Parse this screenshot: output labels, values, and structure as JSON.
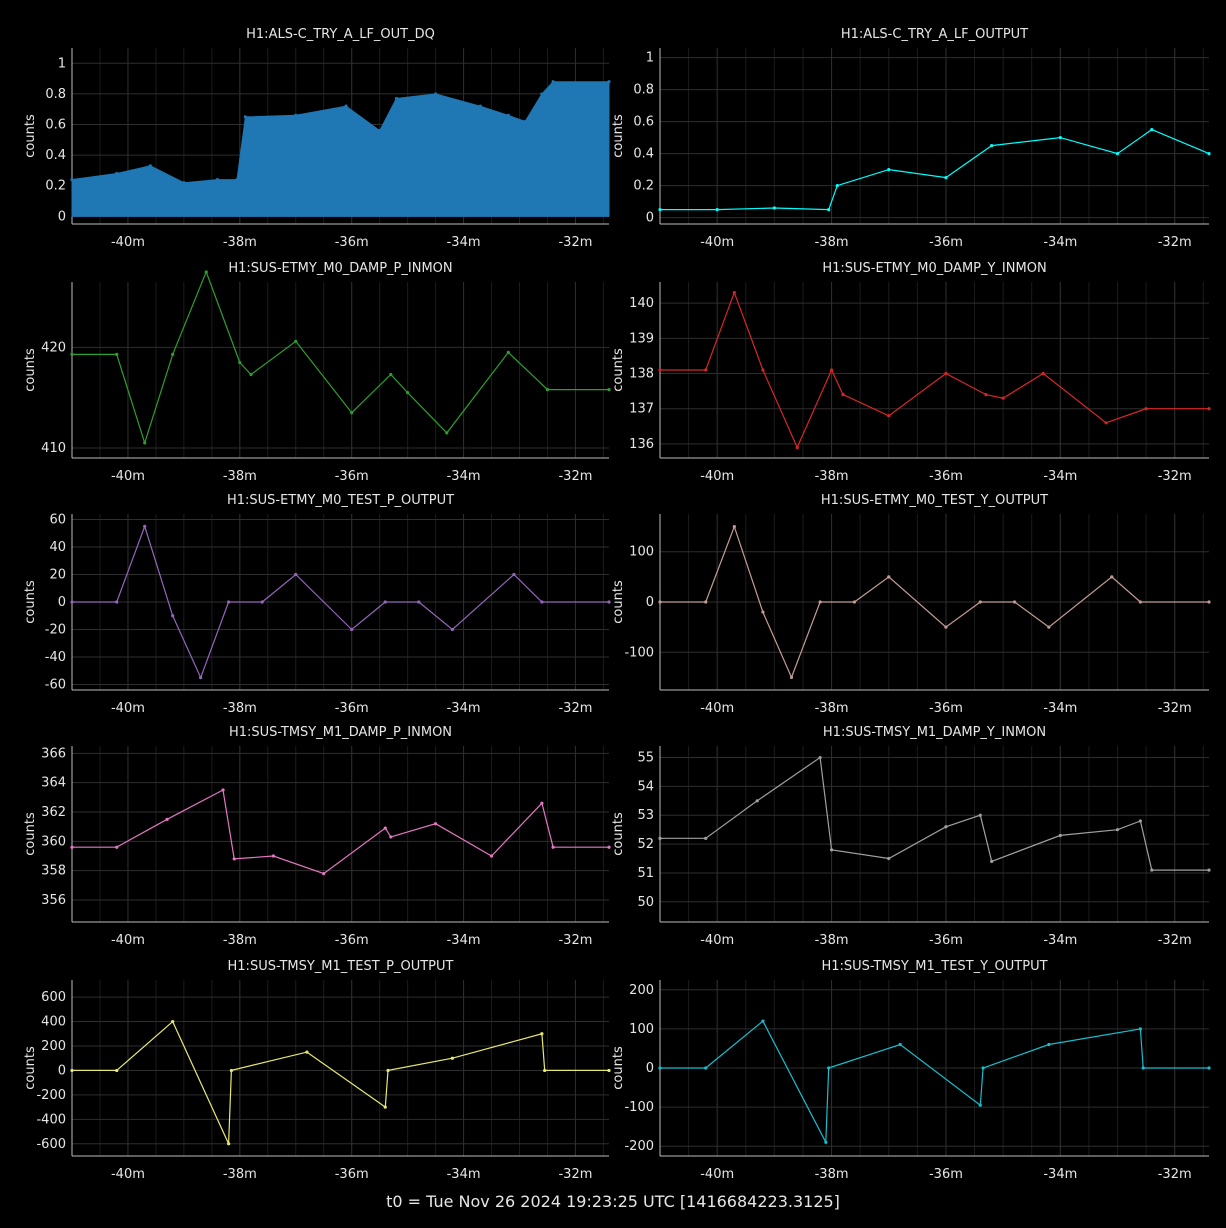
{
  "footer": {
    "t0_label": "t0 = Tue Nov 26 2024 19:23:25 UTC [1416684223.3125]"
  },
  "chart_data": [
    {
      "type": "line",
      "title": "H1:ALS-C_TRY_A_LF_OUT_DQ",
      "ylabel": "counts",
      "color": "#1f77b4",
      "fill": true,
      "xlim": [
        -41,
        -31.4
      ],
      "ylim": [
        -0.05,
        1.1
      ],
      "yticks": [
        0,
        0.2,
        0.4,
        0.6,
        0.8,
        1
      ],
      "ytick_labels": [
        "0",
        "0.2",
        "0.4",
        "0.6",
        "0.8",
        "1"
      ],
      "xticks": [
        -40,
        -38,
        -36,
        -34,
        -32
      ],
      "xtick_labels": [
        "-40m",
        "-38m",
        "-36m",
        "-34m",
        "-32m"
      ],
      "x": [
        -41,
        -40.2,
        -39.6,
        -39.0,
        -38.4,
        -38.05,
        -37.9,
        -37.0,
        -36.1,
        -35.5,
        -35.2,
        -34.5,
        -33.7,
        -33.2,
        -32.9,
        -32.6,
        -32.4,
        -31.4
      ],
      "y": [
        0.24,
        0.28,
        0.33,
        0.22,
        0.24,
        0.24,
        0.65,
        0.66,
        0.72,
        0.56,
        0.77,
        0.8,
        0.72,
        0.66,
        0.62,
        0.8,
        0.88,
        0.88
      ]
    },
    {
      "type": "line",
      "title": "H1:ALS-C_TRY_A_LF_OUTPUT",
      "ylabel": "counts",
      "color": "#00ffff",
      "xlim": [
        -41,
        -31.4
      ],
      "ylim": [
        -0.04,
        1.06
      ],
      "yticks": [
        0,
        0.2,
        0.4,
        0.6,
        0.8,
        1
      ],
      "ytick_labels": [
        "0",
        "0.2",
        "0.4",
        "0.6",
        "0.8",
        "1"
      ],
      "xticks": [
        -40,
        -38,
        -36,
        -34,
        -32
      ],
      "xtick_labels": [
        "-40m",
        "-38m",
        "-36m",
        "-34m",
        "-32m"
      ],
      "x": [
        -41,
        -40,
        -39,
        -38.05,
        -37.9,
        -37,
        -36,
        -35.2,
        -34,
        -33,
        -32.4,
        -31.4
      ],
      "y": [
        0.05,
        0.05,
        0.06,
        0.05,
        0.2,
        0.3,
        0.25,
        0.45,
        0.5,
        0.4,
        0.55,
        0.4
      ]
    },
    {
      "type": "line",
      "title": "H1:SUS-ETMY_M0_DAMP_P_INMON",
      "ylabel": "counts",
      "color": "#2ca02c",
      "xlim": [
        -41,
        -31.4
      ],
      "ylim": [
        409,
        426.5
      ],
      "yticks": [
        410,
        420
      ],
      "ytick_labels": [
        "410",
        "420"
      ],
      "xticks": [
        -40,
        -38,
        -36,
        -34,
        -32
      ],
      "xtick_labels": [
        "-40m",
        "-38m",
        "-36m",
        "-34m",
        "-32m"
      ],
      "x": [
        -41,
        -40.2,
        -39.7,
        -39.2,
        -38.6,
        -38.0,
        -37.8,
        -37.0,
        -36.0,
        -35.3,
        -35.0,
        -34.3,
        -33.2,
        -32.5,
        -31.4
      ],
      "y": [
        419.3,
        419.3,
        410.5,
        419.3,
        427.5,
        418.5,
        417.3,
        420.6,
        413.5,
        417.3,
        415.5,
        411.5,
        419.5,
        415.8,
        415.8
      ]
    },
    {
      "type": "line",
      "title": "H1:SUS-ETMY_M0_DAMP_Y_INMON",
      "ylabel": "counts",
      "color": "#d62728",
      "xlim": [
        -41,
        -31.4
      ],
      "ylim": [
        135.6,
        140.6
      ],
      "yticks": [
        136,
        137,
        138,
        139,
        140
      ],
      "ytick_labels": [
        "136",
        "137",
        "138",
        "139",
        "140"
      ],
      "xticks": [
        -40,
        -38,
        -36,
        -34,
        -32
      ],
      "xtick_labels": [
        "-40m",
        "-38m",
        "-36m",
        "-34m",
        "-32m"
      ],
      "x": [
        -41,
        -40.2,
        -39.7,
        -39.2,
        -38.6,
        -38.0,
        -37.8,
        -37.0,
        -36.0,
        -35.3,
        -35.0,
        -34.3,
        -33.2,
        -32.5,
        -31.4
      ],
      "y": [
        138.1,
        138.1,
        140.3,
        138.1,
        135.9,
        138.1,
        137.4,
        136.8,
        138.0,
        137.4,
        137.3,
        138.0,
        136.6,
        137.0,
        137.0
      ]
    },
    {
      "type": "line",
      "title": "H1:SUS-ETMY_M0_TEST_P_OUTPUT",
      "ylabel": "counts",
      "color": "#9467bd",
      "xlim": [
        -41,
        -31.4
      ],
      "ylim": [
        -64,
        64
      ],
      "yticks": [
        -60,
        -40,
        -20,
        0,
        20,
        40,
        60
      ],
      "ytick_labels": [
        "-60",
        "-40",
        "-20",
        "0",
        "20",
        "40",
        "60"
      ],
      "xticks": [
        -40,
        -38,
        -36,
        -34,
        -32
      ],
      "xtick_labels": [
        "-40m",
        "-38m",
        "-36m",
        "-34m",
        "-32m"
      ],
      "x": [
        -41,
        -40.2,
        -39.7,
        -39.2,
        -38.7,
        -38.2,
        -37.6,
        -37.0,
        -36.0,
        -35.4,
        -34.8,
        -34.2,
        -33.1,
        -32.6,
        -31.4
      ],
      "y": [
        0,
        0,
        55,
        -10,
        -55,
        0,
        0,
        20,
        -20,
        0,
        0,
        -20,
        20,
        0,
        0
      ]
    },
    {
      "type": "line",
      "title": "H1:SUS-ETMY_M0_TEST_Y_OUTPUT",
      "ylabel": "counts",
      "color": "#c49c94",
      "xlim": [
        -41,
        -31.4
      ],
      "ylim": [
        -175,
        175
      ],
      "yticks": [
        -100,
        0,
        100
      ],
      "ytick_labels": [
        "-100",
        "0",
        "100"
      ],
      "xticks": [
        -40,
        -38,
        -36,
        -34,
        -32
      ],
      "xtick_labels": [
        "-40m",
        "-38m",
        "-36m",
        "-34m",
        "-32m"
      ],
      "x": [
        -41,
        -40.2,
        -39.7,
        -39.2,
        -38.7,
        -38.2,
        -37.6,
        -37.0,
        -36.0,
        -35.4,
        -34.8,
        -34.2,
        -33.1,
        -32.6,
        -31.4
      ],
      "y": [
        0,
        0,
        150,
        -20,
        -150,
        0,
        0,
        50,
        -50,
        0,
        0,
        -50,
        50,
        0,
        0
      ]
    },
    {
      "type": "line",
      "title": "H1:SUS-TMSY_M1_DAMP_P_INMON",
      "ylabel": "counts",
      "color": "#e377c2",
      "xlim": [
        -41,
        -31.4
      ],
      "ylim": [
        354.5,
        366.5
      ],
      "yticks": [
        356,
        358,
        360,
        362,
        364,
        366
      ],
      "ytick_labels": [
        "356",
        "358",
        "360",
        "362",
        "364",
        "366"
      ],
      "xticks": [
        -40,
        -38,
        -36,
        -34,
        -32
      ],
      "xtick_labels": [
        "-40m",
        "-38m",
        "-36m",
        "-34m",
        "-32m"
      ],
      "x": [
        -41,
        -40.2,
        -39.3,
        -38.3,
        -38.1,
        -37.4,
        -36.5,
        -35.4,
        -35.3,
        -34.5,
        -33.5,
        -32.6,
        -32.4,
        -31.4
      ],
      "y": [
        359.6,
        359.6,
        361.5,
        363.5,
        358.8,
        359.0,
        357.8,
        360.9,
        360.3,
        361.2,
        359.0,
        362.6,
        359.6,
        359.6
      ]
    },
    {
      "type": "line",
      "title": "H1:SUS-TMSY_M1_DAMP_Y_INMON",
      "ylabel": "counts",
      "color": "#a0a0a0",
      "xlim": [
        -41,
        -31.4
      ],
      "ylim": [
        49.3,
        55.4
      ],
      "yticks": [
        50,
        51,
        52,
        53,
        54,
        55
      ],
      "ytick_labels": [
        "50",
        "51",
        "52",
        "53",
        "54",
        "55"
      ],
      "xticks": [
        -40,
        -38,
        -36,
        -34,
        -32
      ],
      "xtick_labels": [
        "-40m",
        "-38m",
        "-36m",
        "-34m",
        "-32m"
      ],
      "x": [
        -41,
        -40.2,
        -39.3,
        -38.2,
        -38.0,
        -37.0,
        -36.0,
        -35.4,
        -35.2,
        -34.0,
        -33.0,
        -32.6,
        -32.4,
        -31.4
      ],
      "y": [
        52.2,
        52.2,
        53.5,
        55.0,
        51.8,
        51.5,
        52.6,
        53.0,
        51.4,
        52.3,
        52.5,
        52.8,
        51.1,
        51.1
      ]
    },
    {
      "type": "line",
      "title": "H1:SUS-TMSY_M1_TEST_P_OUTPUT",
      "ylabel": "counts",
      "color": "#e8e870",
      "xlim": [
        -41,
        -31.4
      ],
      "ylim": [
        -700,
        740
      ],
      "yticks": [
        -600,
        -400,
        -200,
        0,
        200,
        400,
        600
      ],
      "ytick_labels": [
        "-600",
        "-400",
        "-200",
        "0",
        "200",
        "400",
        "600"
      ],
      "xticks": [
        -40,
        -38,
        -36,
        -34,
        -32
      ],
      "xtick_labels": [
        "-40m",
        "-38m",
        "-36m",
        "-34m",
        "-32m"
      ],
      "x": [
        -41,
        -40.2,
        -39.2,
        -38.2,
        -38.15,
        -36.8,
        -35.4,
        -35.35,
        -34.2,
        -32.6,
        -32.55,
        -31.4
      ],
      "y": [
        0,
        0,
        400,
        -600,
        0,
        150,
        -300,
        0,
        100,
        300,
        0,
        0
      ]
    },
    {
      "type": "line",
      "title": "H1:SUS-TMSY_M1_TEST_Y_OUTPUT",
      "ylabel": "counts",
      "color": "#17becf",
      "xlim": [
        -41,
        -31.4
      ],
      "ylim": [
        -225,
        225
      ],
      "yticks": [
        -200,
        -100,
        0,
        100,
        200
      ],
      "ytick_labels": [
        "-200",
        "-100",
        "0",
        "100",
        "200"
      ],
      "xticks": [
        -40,
        -38,
        -36,
        -34,
        -32
      ],
      "xtick_labels": [
        "-40m",
        "-38m",
        "-36m",
        "-34m",
        "-32m"
      ],
      "x": [
        -41,
        -40.2,
        -39.2,
        -38.1,
        -38.05,
        -36.8,
        -35.4,
        -35.35,
        -34.2,
        -32.6,
        -32.55,
        -31.4
      ],
      "y": [
        0,
        0,
        120,
        -190,
        0,
        60,
        -95,
        0,
        60,
        100,
        0,
        0
      ]
    }
  ]
}
